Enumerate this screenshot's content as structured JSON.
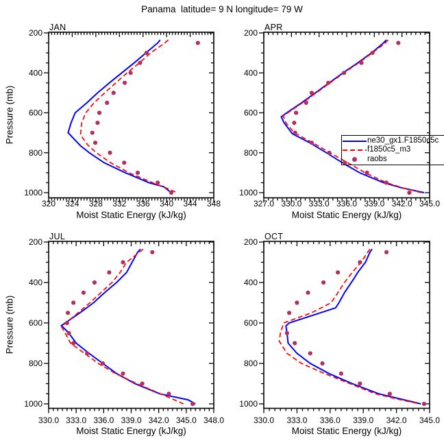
{
  "title": "Panama  latitude= 9 N longitude= 79 W",
  "axis": {
    "x_label": "Moist Static Energy (kJ/kg)",
    "y_label": "Pressure (mb)"
  },
  "legend": {
    "items": [
      {
        "label": "ne30_gx1.F1850c5c",
        "style": "solid",
        "color": "#0000ff"
      },
      {
        "label": "f1850c5_m3",
        "style": "dashed",
        "color": "#ff0000"
      },
      {
        "label": "raobs",
        "style": "dot",
        "color": "#b03060"
      }
    ]
  },
  "chart_data": [
    {
      "type": "line",
      "label": "JAN",
      "xlabel": "Moist Static Energy (kJ/kg)",
      "ylabel": "Pressure (mb)",
      "xlim": [
        320,
        348
      ],
      "xticks": [
        "320",
        "324",
        "328",
        "332",
        "336",
        "340",
        "344",
        "348"
      ],
      "x_minor_step": 0.5,
      "ylim": [
        200,
        1000
      ],
      "yticks": [
        200,
        400,
        600,
        800,
        1000
      ],
      "y_minor_step": 50,
      "y_inverted": true,
      "grid": false,
      "series": [
        {
          "name": "ne30_gx1.F1850c5c",
          "style": "solid",
          "color": "#0000ff",
          "p": [
            235,
            250,
            300,
            350,
            400,
            450,
            500,
            550,
            600,
            650,
            700,
            765,
            800,
            850,
            900,
            950,
            970,
            1000
          ],
          "v": [
            338.9,
            338.5,
            336.5,
            334.5,
            332.4,
            330.3,
            328.3,
            326.5,
            324.5,
            323.8,
            323.3,
            325.4,
            326.9,
            329.4,
            333.0,
            337.0,
            339.5,
            340.8
          ]
        },
        {
          "name": "f1850c5_m3",
          "style": "dashed",
          "color": "#ff0000",
          "p": [
            235,
            250,
            300,
            350,
            400,
            450,
            500,
            550,
            600,
            650,
            710,
            760,
            800,
            850,
            900,
            950,
            975,
            1000
          ],
          "v": [
            340.3,
            339.7,
            337.3,
            335.4,
            333.3,
            331.4,
            329.5,
            327.7,
            326.3,
            325.6,
            325.4,
            326.6,
            328.1,
            330.5,
            333.6,
            337.6,
            339.8,
            341.8
          ]
        },
        {
          "name": "raobs",
          "style": "dots",
          "color": "#b03060",
          "p": [
            250,
            300,
            350,
            400,
            450,
            500,
            550,
            600,
            650,
            700,
            750,
            800,
            850,
            900,
            950,
            1000
          ],
          "v": [
            345.3,
            336.6,
            335.5,
            333.9,
            332.9,
            331.0,
            329.9,
            328.6,
            328.3,
            327.4,
            327.9,
            330.4,
            332.8,
            335.1,
            338.5,
            340.8
          ]
        }
      ]
    },
    {
      "type": "line",
      "label": "APR",
      "xlabel": "Moist Static Energy (kJ/kg)",
      "ylabel": "Pressure (mb)",
      "xlim": [
        327,
        345
      ],
      "xticks": [
        "327.0",
        "330.0",
        "333.0",
        "336.0",
        "339.0",
        "342.0",
        "345.0"
      ],
      "x_minor_step": 0.5,
      "ylim": [
        200,
        1000
      ],
      "yticks": [
        200,
        400,
        600,
        800,
        1000
      ],
      "y_minor_step": 50,
      "y_inverted": true,
      "grid": false,
      "series": [
        {
          "name": "ne30_gx1.F1850c5c",
          "style": "solid",
          "color": "#0000ff",
          "p": [
            235,
            250,
            300,
            350,
            400,
            450,
            500,
            550,
            600,
            620,
            650,
            705,
            750,
            800,
            855,
            900,
            950,
            975,
            1000
          ],
          "v": [
            340.3,
            340.0,
            338.7,
            337.2,
            335.6,
            334.1,
            332.6,
            331.1,
            329.5,
            328.9,
            329.2,
            330.1,
            332.0,
            333.8,
            335.7,
            337.4,
            340.0,
            341.9,
            344.4
          ]
        },
        {
          "name": "f1850c5_m3",
          "style": "dashed",
          "color": "#ff0000",
          "p": [
            235,
            250,
            300,
            350,
            400,
            450,
            500,
            550,
            600,
            615,
            650,
            700,
            750,
            800,
            850,
            900,
            950,
            975,
            1000
          ],
          "v": [
            340.5,
            340.2,
            338.8,
            337.3,
            335.7,
            334.2,
            332.7,
            331.2,
            329.6,
            329.1,
            329.4,
            330.3,
            332.3,
            334.2,
            336.1,
            338.0,
            340.3,
            342.0,
            344.1
          ]
        },
        {
          "name": "raobs",
          "style": "dots",
          "color": "#b03060",
          "p": [
            250,
            300,
            350,
            400,
            450,
            500,
            550,
            600,
            650,
            700,
            750,
            800,
            850,
            900,
            950,
            1000
          ],
          "v": [
            341.6,
            338.8,
            337.6,
            335.7,
            334.0,
            332.2,
            331.6,
            330.5,
            330.3,
            330.4,
            332.2,
            334.1,
            335.8,
            338.2,
            340.3,
            342.8
          ]
        }
      ]
    },
    {
      "type": "line",
      "label": "JUL",
      "xlabel": "Moist Static Energy (kJ/kg)",
      "ylabel": "Pressure (mb)",
      "xlim": [
        330,
        348
      ],
      "xticks": [
        "330.0",
        "333.0",
        "336.0",
        "339.0",
        "342.0",
        "345.0",
        "348.0"
      ],
      "x_minor_step": 0.5,
      "ylim": [
        200,
        1000
      ],
      "yticks": [
        200,
        400,
        600,
        800,
        1000
      ],
      "y_minor_step": 50,
      "y_inverted": true,
      "grid": false,
      "series": [
        {
          "name": "ne30_gx1.F1850c5c",
          "style": "solid",
          "color": "#0000ff",
          "p": [
            235,
            250,
            300,
            350,
            400,
            450,
            500,
            550,
            613,
            650,
            700,
            750,
            800,
            850,
            900,
            950,
            980,
            1000
          ],
          "v": [
            340.0,
            339.7,
            339.1,
            338.5,
            337.4,
            336.1,
            334.9,
            333.4,
            331.4,
            332.2,
            333.0,
            334.4,
            335.9,
            337.4,
            339.4,
            342.1,
            345.2,
            346.0
          ]
        },
        {
          "name": "f1850c5_m3",
          "style": "dashed",
          "color": "#ff0000",
          "p": [
            235,
            250,
            300,
            350,
            400,
            450,
            500,
            550,
            618,
            650,
            700,
            750,
            800,
            850,
            900,
            950,
            1000
          ],
          "v": [
            340.3,
            339.9,
            338.5,
            337.8,
            336.9,
            335.7,
            334.5,
            333.2,
            331.4,
            331.8,
            332.4,
            333.9,
            335.4,
            337.3,
            339.6,
            342.2,
            344.7
          ]
        },
        {
          "name": "raobs",
          "style": "dots",
          "color": "#b03060",
          "p": [
            250,
            300,
            350,
            400,
            450,
            500,
            550,
            600,
            650,
            700,
            750,
            800,
            850,
            900,
            950,
            1000
          ],
          "v": [
            341.3,
            338.1,
            336.6,
            335.0,
            333.8,
            332.7,
            332.1,
            332.0,
            332.2,
            332.7,
            334.2,
            335.9,
            338.1,
            340.2,
            343.1,
            345.7
          ]
        }
      ]
    },
    {
      "type": "line",
      "label": "OCT",
      "xlabel": "Moist Static Energy (kJ/kg)",
      "ylabel": "Pressure (mb)",
      "xlim": [
        330,
        345
      ],
      "xticks": [
        "330.0",
        "333.0",
        "336.0",
        "339.0",
        "342.0",
        "345.0"
      ],
      "x_minor_step": 0.5,
      "ylim": [
        200,
        1000
      ],
      "yticks": [
        200,
        400,
        600,
        800,
        1000
      ],
      "y_minor_step": 50,
      "y_inverted": true,
      "grid": false,
      "series": [
        {
          "name": "ne30_gx1.F1850c5c",
          "style": "solid",
          "color": "#0000ff",
          "p": [
            235,
            250,
            300,
            350,
            385,
            450,
            500,
            525,
            600,
            615,
            650,
            700,
            750,
            800,
            850,
            900,
            950,
            975,
            1000
          ],
          "v": [
            339.8,
            339.6,
            339.2,
            338.5,
            338.1,
            337.3,
            336.8,
            336.5,
            332.3,
            332.0,
            332.1,
            332.2,
            333.0,
            334.2,
            335.9,
            338.0,
            340.4,
            342.3,
            344.2
          ]
        },
        {
          "name": "f1850c5_m3",
          "style": "dashed",
          "color": "#ff0000",
          "p": [
            235,
            250,
            300,
            350,
            400,
            450,
            500,
            550,
            600,
            650,
            690,
            750,
            800,
            850,
            900,
            950,
            975,
            1000
          ],
          "v": [
            339.6,
            339.4,
            338.8,
            338.0,
            337.3,
            336.7,
            336.1,
            334.3,
            331.8,
            331.5,
            331.4,
            332.1,
            333.4,
            335.5,
            337.8,
            340.1,
            342.0,
            344.1
          ]
        },
        {
          "name": "raobs",
          "style": "dots",
          "color": "#b03060",
          "p": [
            250,
            300,
            350,
            400,
            450,
            500,
            550,
            650,
            700,
            750,
            800,
            850,
            900,
            950,
            1000
          ],
          "v": [
            341.1,
            338.7,
            336.7,
            335.4,
            334.0,
            333.0,
            332.3,
            332.1,
            332.8,
            334.2,
            335.3,
            337.0,
            338.7,
            341.4,
            344.5
          ]
        }
      ]
    }
  ]
}
